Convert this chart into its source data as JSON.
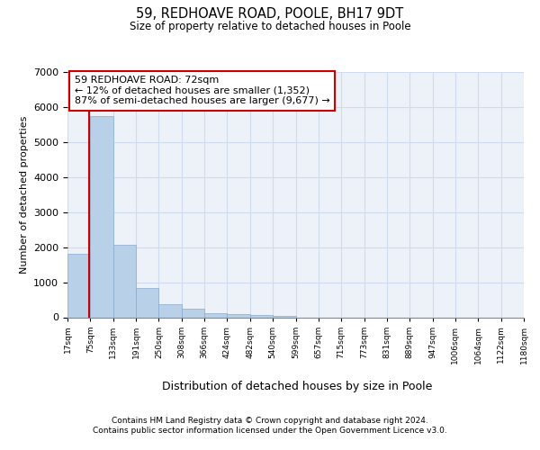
{
  "title1": "59, REDHOAVE ROAD, POOLE, BH17 9DT",
  "title2": "Size of property relative to detached houses in Poole",
  "xlabel": "Distribution of detached houses by size in Poole",
  "ylabel": "Number of detached properties",
  "footnote1": "Contains HM Land Registry data © Crown copyright and database right 2024.",
  "footnote2": "Contains public sector information licensed under the Open Government Licence v3.0.",
  "bin_labels": [
    "17sqm",
    "75sqm",
    "133sqm",
    "191sqm",
    "250sqm",
    "308sqm",
    "366sqm",
    "424sqm",
    "482sqm",
    "540sqm",
    "599sqm",
    "657sqm",
    "715sqm",
    "773sqm",
    "831sqm",
    "889sqm",
    "947sqm",
    "1006sqm",
    "1064sqm",
    "1122sqm",
    "1180sqm"
  ],
  "bar_values": [
    1800,
    5750,
    2070,
    840,
    380,
    240,
    120,
    80,
    65,
    30,
    0,
    0,
    0,
    0,
    0,
    0,
    0,
    0,
    0,
    0
  ],
  "bar_color": "#b8d0e8",
  "bar_edge_color": "#88aace",
  "grid_color": "#d0dcee",
  "background_color": "#edf2f9",
  "annotation_line_color": "#cc0000",
  "annotation_box_text": "59 REDHOAVE ROAD: 72sqm\n← 12% of detached houses are smaller (1,352)\n87% of semi-detached houses are larger (9,677) →",
  "annotation_box_edge_color": "#cc0000",
  "ylim": [
    0,
    7000
  ],
  "yticks": [
    0,
    1000,
    2000,
    3000,
    4000,
    5000,
    6000,
    7000
  ],
  "red_line_x": 0.948
}
